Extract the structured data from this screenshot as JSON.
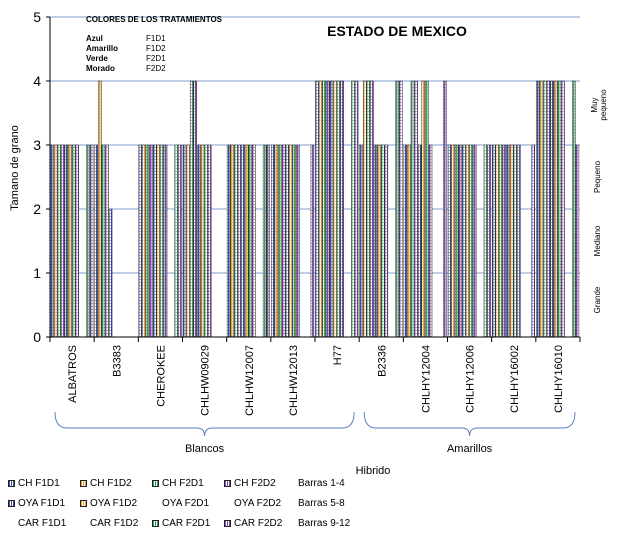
{
  "chart_data": {
    "type": "bar",
    "title": "ESTADO DE MEXICO",
    "ylabel": "Tamano de grano",
    "xlabel": "Hibrido",
    "ylim": [
      0,
      5
    ],
    "yticks": [
      0,
      1,
      2,
      3,
      4,
      5
    ],
    "grid": true,
    "categories": [
      "ALBATROS",
      "B3383",
      "CHEROKEE",
      "CHLHW09029",
      "CHLHW12007",
      "CHLHW12013",
      "H77",
      "B2336",
      "CHLHY12004",
      "CHLHY12006",
      "CHLHY16002",
      "CHLHY16010"
    ],
    "groups": [
      {
        "label": "Blancos",
        "from": 0,
        "to": 6
      },
      {
        "label": "Amarillos",
        "from": 7,
        "to": 11
      }
    ],
    "right_labels": [
      {
        "label": "Muy pequeno",
        "at": 4
      },
      {
        "label": "Pequeno",
        "at": 3
      },
      {
        "label": "Mediano",
        "at": 2
      },
      {
        "label": "Grande",
        "at": 1
      }
    ],
    "series": [
      {
        "name": "CH F1D1",
        "color": "#3b4f9c",
        "values": [
          3,
          3,
          3,
          3,
          3,
          3,
          4,
          3,
          3,
          3,
          3,
          4
        ]
      },
      {
        "name": "CH F1D2",
        "color": "#e8a23a",
        "values": [
          3,
          4,
          3,
          3,
          3,
          3,
          4,
          4,
          3,
          3,
          3,
          4
        ]
      },
      {
        "name": "CH F2D1",
        "color": "#3fa064",
        "values": [
          3,
          3,
          3,
          4,
          3,
          3,
          4,
          4,
          4,
          3,
          3,
          4
        ]
      },
      {
        "name": "CH F2D2",
        "color": "#7c4bb0",
        "values": [
          3,
          3,
          3,
          4,
          3,
          3,
          4,
          4,
          4,
          3,
          3,
          4
        ]
      },
      {
        "name": "OYA F1D1",
        "color": "#3b4f9c",
        "values": [
          3,
          2,
          3,
          3,
          3,
          3,
          4,
          3,
          3,
          3,
          3,
          4
        ]
      },
      {
        "name": "OYA F1D2",
        "color": "#e8a23a",
        "values": [
          3,
          0,
          3,
          3,
          3,
          3,
          4,
          3,
          4,
          3,
          3,
          4
        ]
      },
      {
        "name": "OYA F2D1",
        "color": "#3fa064",
        "values": [
          3,
          0,
          3,
          3,
          3,
          3,
          4,
          3,
          4,
          3,
          3,
          4
        ]
      },
      {
        "name": "OYA F2D2",
        "color": "#7c4bb0",
        "values": [
          3,
          0,
          3,
          3,
          3,
          3,
          4,
          3,
          3,
          3,
          3,
          4
        ]
      },
      {
        "name": "CAR F1D1",
        "color": "#3b4f9c",
        "values": [
          0,
          0,
          0,
          0,
          0,
          0,
          0,
          0,
          0,
          0,
          0,
          0
        ]
      },
      {
        "name": "CAR F1D2",
        "color": "#e8a23a",
        "values": [
          0,
          0,
          0,
          0,
          0,
          0,
          0,
          0,
          0,
          0,
          0,
          0
        ]
      },
      {
        "name": "CAR F2D1",
        "color": "#3fa064",
        "values": [
          3,
          0,
          3,
          0,
          3,
          0,
          4,
          4,
          0,
          3,
          0,
          4
        ]
      },
      {
        "name": "CAR F2D2",
        "color": "#7c4bb0",
        "values": [
          3,
          0,
          3,
          0,
          3,
          3,
          4,
          4,
          4,
          3,
          3,
          3
        ]
      }
    ]
  },
  "annotation": {
    "heading": "COLORES DE LOS TRATAMIENTOS",
    "rows": [
      {
        "color_name": "Azul",
        "code": "F1D1"
      },
      {
        "color_name": "Amarillo",
        "code": "F1D2"
      },
      {
        "color_name": "Verde",
        "code": "F2D1"
      },
      {
        "color_name": "Morado",
        "code": "F2D2"
      }
    ]
  },
  "legend": {
    "rows": [
      {
        "items": [
          {
            "label": "CH F1D1",
            "color": "#3b4f9c",
            "swatch": true
          },
          {
            "label": "CH F1D2",
            "color": "#e8a23a",
            "swatch": true
          },
          {
            "label": "CH F2D1",
            "color": "#3fa064",
            "swatch": true
          },
          {
            "label": "CH F2D2",
            "color": "#7c4bb0",
            "swatch": true
          }
        ],
        "note": "Barras 1-4"
      },
      {
        "items": [
          {
            "label": "OYA F1D1",
            "color": "#3b4f9c",
            "swatch": true
          },
          {
            "label": "OYA F1D2",
            "color": "#e8a23a",
            "swatch": true
          },
          {
            "label": "OYA F2D1",
            "color": "#3fa064",
            "swatch": false
          },
          {
            "label": "OYA F2D2",
            "color": "#7c4bb0",
            "swatch": false
          }
        ],
        "note": "Barras 5-8"
      },
      {
        "items": [
          {
            "label": "CAR F1D1",
            "color": "#3b4f9c",
            "swatch": false
          },
          {
            "label": "CAR F1D2",
            "color": "#e8a23a",
            "swatch": false
          },
          {
            "label": "CAR F2D1",
            "color": "#3fa064",
            "swatch": true
          },
          {
            "label": "CAR F2D2",
            "color": "#7c4bb0",
            "swatch": true
          }
        ],
        "note": "Barras 9-12"
      }
    ]
  }
}
